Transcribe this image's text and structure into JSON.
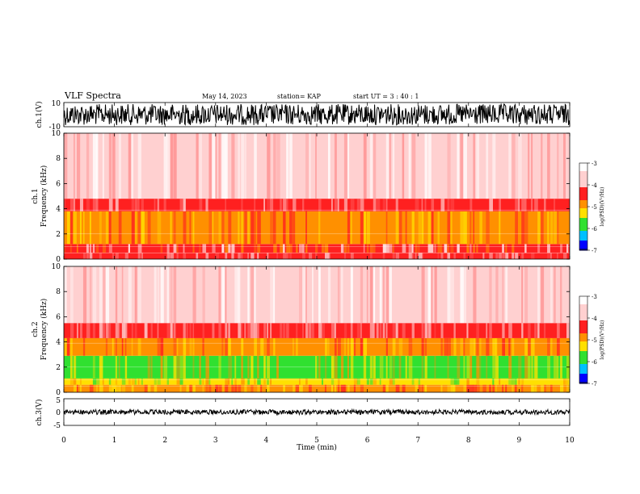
{
  "header": {
    "title": "VLF Spectra",
    "date": "May 14, 2023",
    "station": "station= KAP",
    "start_ut": "start  UT  =   3  : 40 : 1"
  },
  "chart_data": [
    {
      "type": "line",
      "panel": "ch1-waveform",
      "ylabel": "ch.1(V)",
      "ylim": [
        -10,
        10
      ],
      "yticks": [
        "10",
        "-10"
      ],
      "xlim": [
        0,
        10
      ]
    },
    {
      "type": "heatmap",
      "panel": "ch1-spectrogram",
      "ylabel": "ch.1\nFrequency (kHz)",
      "ylabel_lines": [
        "ch.1",
        "Frequency (kHz)"
      ],
      "ylim": [
        0,
        10
      ],
      "yticks": [
        "0",
        "2",
        "4",
        "6",
        "8",
        "10"
      ],
      "xlim": [
        0,
        10
      ],
      "bands": [
        {
          "from": 0.0,
          "to": 0.5,
          "level": "red"
        },
        {
          "from": 0.5,
          "to": 1.2,
          "level": "red-lines"
        },
        {
          "from": 1.2,
          "to": 3.8,
          "level": "orange-yellow"
        },
        {
          "from": 3.8,
          "to": 4.8,
          "level": "red"
        },
        {
          "from": 4.8,
          "to": 10.0,
          "level": "pink-sparse"
        }
      ],
      "colorbar": {
        "label": "log(PSD)(V²/Hz)",
        "range": [
          -7,
          -3
        ],
        "ticks": [
          "-3",
          "-4",
          "-5",
          "-6",
          "-7"
        ]
      }
    },
    {
      "type": "heatmap",
      "panel": "ch2-spectrogram",
      "ylabel": "ch.2\nFrequency (kHz)",
      "ylabel_lines": [
        "ch.2",
        "Frequency (kHz)"
      ],
      "ylim": [
        0,
        10
      ],
      "yticks": [
        "0",
        "2",
        "4",
        "6",
        "8",
        "10"
      ],
      "xlim": [
        0,
        10
      ],
      "bands": [
        {
          "from": 0.0,
          "to": 0.6,
          "level": "orange"
        },
        {
          "from": 0.6,
          "to": 1.1,
          "level": "yellow-green"
        },
        {
          "from": 1.1,
          "to": 2.9,
          "level": "green-yellow"
        },
        {
          "from": 2.9,
          "to": 4.3,
          "level": "orange"
        },
        {
          "from": 4.3,
          "to": 5.5,
          "level": "red"
        },
        {
          "from": 5.5,
          "to": 10.0,
          "level": "pink-sparse"
        }
      ],
      "colorbar": {
        "label": "log(PSD)(V²/Hz)",
        "range": [
          -7,
          -3
        ],
        "ticks": [
          "-3",
          "-4",
          "-5",
          "-6",
          "-7"
        ]
      }
    },
    {
      "type": "line",
      "panel": "ch3-waveform",
      "ylabel": "ch.3(V)",
      "ylim": [
        -5,
        5
      ],
      "yticks": [
        "5",
        "0",
        "-5"
      ],
      "xlim": [
        0,
        10
      ],
      "xlabel": "Time (min)",
      "xticks": [
        "0",
        "1",
        "2",
        "3",
        "4",
        "5",
        "6",
        "7",
        "8",
        "9",
        "10"
      ]
    }
  ],
  "colors": {
    "pink": "#ffd0d0",
    "red": "#ff2020",
    "orange": "#ff9000",
    "yellow": "#ffe000",
    "green": "#30e030"
  }
}
